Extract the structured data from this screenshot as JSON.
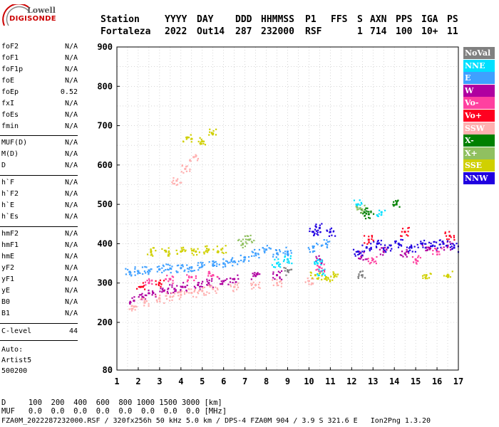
{
  "logo": {
    "brand_top": "Lowell",
    "brand_bottom": "DIGISONDE"
  },
  "header": {
    "row1": [
      "Station",
      "YYYY",
      "DAY",
      "DDD",
      "HHMMSS",
      "P1",
      "FFS",
      "S",
      "AXN",
      "PPS",
      "IGA",
      "PS"
    ],
    "row2": [
      "Fortaleza",
      "2022",
      "Out14",
      "287",
      "232000",
      "RSF",
      "",
      "1",
      "714",
      "100",
      "10+",
      "11"
    ]
  },
  "params_group1": [
    {
      "name": "foF2",
      "value": "N/A"
    },
    {
      "name": "foF1",
      "value": "N/A"
    },
    {
      "name": "foF1p",
      "value": "N/A"
    },
    {
      "name": "foE",
      "value": "N/A"
    },
    {
      "name": "foEp",
      "value": "0.52"
    },
    {
      "name": "fxI",
      "value": "N/A"
    },
    {
      "name": "foEs",
      "value": "N/A"
    },
    {
      "name": "fmin",
      "value": "N/A"
    }
  ],
  "params_group2": [
    {
      "name": "MUF(D)",
      "value": "N/A"
    },
    {
      "name": "M(D)",
      "value": "N/A"
    },
    {
      "name": "D",
      "value": "N/A"
    }
  ],
  "params_group3": [
    {
      "name": "h`F",
      "value": "N/A"
    },
    {
      "name": "h`F2",
      "value": "N/A"
    },
    {
      "name": "h`E",
      "value": "N/A"
    },
    {
      "name": "h`Es",
      "value": "N/A"
    }
  ],
  "params_group4": [
    {
      "name": "hmF2",
      "value": "N/A"
    },
    {
      "name": "hmF1",
      "value": "N/A"
    },
    {
      "name": "hmE",
      "value": "N/A"
    },
    {
      "name": "yF2",
      "value": "N/A"
    },
    {
      "name": "yF1",
      "value": "N/A"
    },
    {
      "name": "yE",
      "value": "N/A"
    },
    {
      "name": "B0",
      "value": "N/A"
    },
    {
      "name": "B1",
      "value": "N/A"
    }
  ],
  "clevel": {
    "name": "C-level",
    "value": "44"
  },
  "auto": {
    "line1": "Auto:",
    "line2": "Artist5",
    "line3": "500200"
  },
  "legend": [
    {
      "label": "NoVal",
      "color": "#808080"
    },
    {
      "label": "NNE",
      "color": "#00e0ff"
    },
    {
      "label": "E",
      "color": "#3fa0ff"
    },
    {
      "label": "W",
      "color": "#b000a0"
    },
    {
      "label": "Vo-",
      "color": "#ff40a0"
    },
    {
      "label": "Vo+",
      "color": "#ff0020"
    },
    {
      "label": "SSW",
      "color": "#ffb0b0"
    },
    {
      "label": "X-",
      "color": "#008000"
    },
    {
      "label": "X+",
      "color": "#90c060"
    },
    {
      "label": "SSE",
      "color": "#d0d000"
    },
    {
      "label": "NNW",
      "color": "#2000e0"
    }
  ],
  "footer": {
    "line1": "D     100  200  400  600  800 1000 1500 3000 [km]",
    "line2": "MUF   0.0  0.0  0.0  0.0  0.0  0.0  0.0  0.0 [MHz]",
    "line3": "FZA0M_2022287232000.RSF / 320fx256h 50 kHz 5.0 km / DPS-4 FZA0M 904 / 3.9 S 321.6 E   Ion2Png 1.3.20"
  },
  "chart_data": {
    "type": "scatter",
    "title": "",
    "xlabel": "",
    "ylabel": "",
    "xlim": [
      1,
      17
    ],
    "ylim": [
      80,
      900
    ],
    "x_ticks": [
      1,
      2,
      3,
      4,
      5,
      6,
      7,
      8,
      9,
      10,
      11,
      12,
      13,
      14,
      15,
      16,
      17
    ],
    "y_ticks": [
      80,
      200,
      300,
      400,
      500,
      600,
      700,
      800,
      900
    ],
    "grid": true,
    "legend_position": "right",
    "series": [
      {
        "name": "E",
        "color": "#3fa0ff",
        "points": [
          [
            1.6,
            328
          ],
          [
            2.0,
            330
          ],
          [
            2.5,
            332
          ],
          [
            3.0,
            335
          ],
          [
            3.5,
            337
          ],
          [
            4.0,
            338
          ],
          [
            4.5,
            340
          ],
          [
            5.0,
            343
          ],
          [
            5.5,
            345
          ],
          [
            6.0,
            350
          ],
          [
            6.5,
            355
          ],
          [
            7.0,
            365
          ],
          [
            7.5,
            375
          ],
          [
            8.0,
            385
          ],
          [
            8.5,
            375
          ],
          [
            9.0,
            380
          ],
          [
            10.2,
            390
          ],
          [
            10.8,
            400
          ]
        ]
      },
      {
        "name": "W",
        "color": "#b000a0",
        "points": [
          [
            1.8,
            255
          ],
          [
            2.2,
            265
          ],
          [
            2.7,
            275
          ],
          [
            3.2,
            280
          ],
          [
            3.7,
            285
          ],
          [
            4.2,
            290
          ],
          [
            4.8,
            295
          ],
          [
            5.3,
            300
          ],
          [
            6.0,
            305
          ],
          [
            6.5,
            310
          ],
          [
            7.5,
            318
          ],
          [
            8.5,
            320
          ],
          [
            10.5,
            360
          ],
          [
            12.5,
            370
          ],
          [
            13.5,
            380
          ],
          [
            14.5,
            375
          ],
          [
            15.5,
            390
          ],
          [
            16.5,
            395
          ]
        ]
      },
      {
        "name": "SSW",
        "color": "#ffb0b0",
        "points": [
          [
            1.8,
            240
          ],
          [
            2.3,
            250
          ],
          [
            3.0,
            260
          ],
          [
            3.5,
            265
          ],
          [
            4.0,
            270
          ],
          [
            4.5,
            275
          ],
          [
            5.0,
            280
          ],
          [
            5.5,
            285
          ],
          [
            6.5,
            290
          ],
          [
            7.5,
            295
          ],
          [
            8.5,
            300
          ],
          [
            10.0,
            305
          ],
          [
            3.8,
            560
          ],
          [
            4.2,
            590
          ],
          [
            4.6,
            620
          ]
        ]
      },
      {
        "name": "SSE",
        "color": "#d0d000",
        "points": [
          [
            2.6,
            380
          ],
          [
            3.3,
            380
          ],
          [
            4.0,
            380
          ],
          [
            4.7,
            380
          ],
          [
            5.3,
            385
          ],
          [
            5.9,
            385
          ],
          [
            10.3,
            320
          ],
          [
            10.8,
            315
          ],
          [
            11.2,
            318
          ],
          [
            4.3,
            670
          ],
          [
            5.0,
            660
          ],
          [
            5.5,
            680
          ],
          [
            15.5,
            320
          ],
          [
            16.5,
            320
          ]
        ]
      },
      {
        "name": "NNW",
        "color": "#2000e0",
        "points": [
          [
            10.2,
            430
          ],
          [
            10.5,
            440
          ],
          [
            11.0,
            430
          ],
          [
            12.3,
            380
          ],
          [
            12.7,
            390
          ],
          [
            13.2,
            400
          ],
          [
            13.7,
            390
          ],
          [
            14.2,
            400
          ],
          [
            14.8,
            390
          ],
          [
            15.3,
            400
          ],
          [
            15.8,
            395
          ],
          [
            16.3,
            400
          ],
          [
            16.8,
            390
          ]
        ]
      },
      {
        "name": "NNE",
        "color": "#00e0ff",
        "points": [
          [
            8.5,
            350
          ],
          [
            9.0,
            360
          ],
          [
            10.4,
            350
          ],
          [
            10.6,
            330
          ],
          [
            12.3,
            500
          ],
          [
            13.4,
            480
          ]
        ]
      },
      {
        "name": "Vo-",
        "color": "#ff40a0",
        "points": [
          [
            2.5,
            300
          ],
          [
            3.5,
            310
          ],
          [
            4.5,
            315
          ],
          [
            5.5,
            320
          ],
          [
            10.5,
            340
          ],
          [
            13.0,
            360
          ],
          [
            15.0,
            360
          ],
          [
            16.0,
            380
          ]
        ]
      },
      {
        "name": "Vo+",
        "color": "#ff0020",
        "points": [
          [
            2.1,
            290
          ],
          [
            3.0,
            300
          ],
          [
            12.8,
            410
          ],
          [
            14.5,
            430
          ],
          [
            16.6,
            420
          ]
        ]
      },
      {
        "name": "X-",
        "color": "#008000",
        "points": [
          [
            12.6,
            480
          ],
          [
            12.8,
            475
          ],
          [
            14.1,
            500
          ]
        ]
      },
      {
        "name": "X+",
        "color": "#90c060",
        "points": [
          [
            6.9,
            400
          ],
          [
            7.2,
            410
          ],
          [
            12.4,
            490
          ]
        ]
      },
      {
        "name": "NoVal",
        "color": "#808080",
        "points": [
          [
            9.0,
            330
          ],
          [
            12.5,
            320
          ]
        ]
      }
    ]
  }
}
